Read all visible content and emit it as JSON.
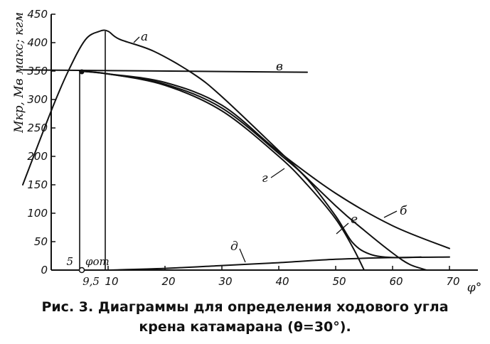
{
  "chart_data": {
    "type": "line",
    "title": "",
    "xlabel": "φ°",
    "ylabel": "Мкр, Мв макс; кгм",
    "xlim": [
      0,
      70
    ],
    "ylim": [
      0,
      450
    ],
    "x_ticks": [
      10,
      20,
      30,
      40,
      50,
      60,
      70
    ],
    "x_tick_labels": [
      "10",
      "20",
      "30",
      "40",
      "50",
      "60",
      "70"
    ],
    "y_ticks": [
      0,
      50,
      100,
      150,
      200,
      250,
      300,
      350,
      400,
      450
    ],
    "y_tick_labels": [
      "0",
      "50",
      "100",
      "150",
      "200",
      "250",
      "300",
      "350",
      "400",
      "450"
    ],
    "grid": false,
    "series": [
      {
        "name": "а",
        "points": [
          [
            -5,
            150
          ],
          [
            0,
            280
          ],
          [
            3,
            350
          ],
          [
            6,
            405
          ],
          [
            8.5,
            420
          ],
          [
            10,
            420
          ],
          [
            12,
            406
          ],
          [
            18,
            385
          ],
          [
            25,
            345
          ],
          [
            30,
            305
          ],
          [
            40,
            210
          ],
          [
            50,
            113
          ],
          [
            55,
            70
          ],
          [
            60,
            30
          ],
          [
            63,
            10
          ],
          [
            66,
            0
          ]
        ]
      },
      {
        "name": "б",
        "points": [
          [
            5,
            350
          ],
          [
            10,
            345
          ],
          [
            20,
            330
          ],
          [
            30,
            290
          ],
          [
            40,
            208
          ],
          [
            50,
            135
          ],
          [
            60,
            78
          ],
          [
            70,
            38
          ]
        ]
      },
      {
        "name": "в",
        "points": [
          [
            -5,
            352
          ],
          [
            45,
            348
          ]
        ]
      },
      {
        "name": "г",
        "points": [
          [
            5,
            350
          ],
          [
            10,
            345
          ],
          [
            20,
            325
          ],
          [
            30,
            280
          ],
          [
            40,
            200
          ],
          [
            45,
            150
          ],
          [
            50,
            90
          ],
          [
            53,
            40
          ],
          [
            55,
            0
          ]
        ]
      },
      {
        "name": "д",
        "points": [
          [
            10,
            0
          ],
          [
            20,
            3
          ],
          [
            30,
            8
          ],
          [
            40,
            13
          ],
          [
            50,
            19
          ],
          [
            60,
            22
          ],
          [
            70,
            23
          ]
        ]
      },
      {
        "name": "е",
        "points": [
          [
            5,
            350
          ],
          [
            10,
            345
          ],
          [
            20,
            327
          ],
          [
            30,
            285
          ],
          [
            40,
            205
          ],
          [
            45,
            160
          ],
          [
            50,
            95
          ],
          [
            53,
            48
          ],
          [
            56,
            28
          ],
          [
            60,
            22
          ],
          [
            65,
            23
          ]
        ]
      }
    ],
    "reference_lines": [
      {
        "x": 5,
        "y_from": 0,
        "y_to": 350
      },
      {
        "x": 9.5,
        "y_from": 0,
        "y_to": 420
      }
    ],
    "annotations": [
      "5",
      "φот",
      "9,5",
      "10"
    ]
  },
  "caption": {
    "line1": "Рис. 3. Диаграммы для определения ходового угла",
    "line2": "крена катамарана (θ=30°)."
  }
}
